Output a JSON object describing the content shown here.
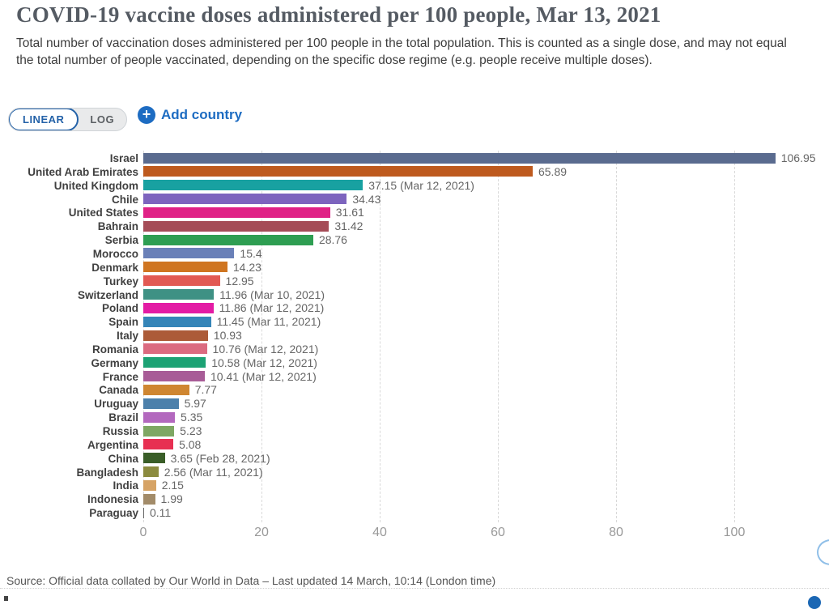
{
  "header": {
    "title": "COVID-19 vaccine doses administered per 100 people, Mar 13, 2021",
    "subtitle": "Total number of vaccination doses administered per 100 people in the total population. This is counted as a single dose, and may not equal the total number of people vaccinated, depending on the specific dose regime (e.g. people receive multiple doses)."
  },
  "controls": {
    "scale_toggle": {
      "options": [
        "LINEAR",
        "LOG"
      ],
      "selected": "LINEAR",
      "selected_color": "#2462a8"
    },
    "add_country": {
      "label": "Add country",
      "plus_icon": "+",
      "accent_color": "#1d6cc2"
    }
  },
  "chart_data": {
    "type": "bar",
    "orientation": "horizontal",
    "title": "COVID-19 vaccine doses administered per 100 people, Mar 13, 2021",
    "xlabel": "",
    "ylabel": "",
    "xlim": [
      0,
      113
    ],
    "x_ticks": [
      0,
      20,
      40,
      60,
      80,
      100
    ],
    "grid": "dashed-vertical",
    "bars": [
      {
        "label": "Israel",
        "value": 106.95,
        "display": "106.95",
        "color": "#5a6b8f"
      },
      {
        "label": "United Arab Emirates",
        "value": 65.89,
        "display": "65.89",
        "color": "#be5a1e"
      },
      {
        "label": "United Kingdom",
        "value": 37.15,
        "display": "37.15 (Mar 12, 2021)",
        "color": "#18a1a1"
      },
      {
        "label": "Chile",
        "value": 34.43,
        "display": "34.43",
        "color": "#7d64be"
      },
      {
        "label": "United States",
        "value": 31.61,
        "display": "31.61",
        "color": "#e02186"
      },
      {
        "label": "Bahrain",
        "value": 31.42,
        "display": "31.42",
        "color": "#a54c57"
      },
      {
        "label": "Serbia",
        "value": 28.76,
        "display": "28.76",
        "color": "#2e9e52"
      },
      {
        "label": "Morocco",
        "value": 15.4,
        "display": "15.4",
        "color": "#6a80b8"
      },
      {
        "label": "Denmark",
        "value": 14.23,
        "display": "14.23",
        "color": "#cf7521"
      },
      {
        "label": "Turkey",
        "value": 12.95,
        "display": "12.95",
        "color": "#e25953"
      },
      {
        "label": "Switzerland",
        "value": 11.96,
        "display": "11.96 (Mar 10, 2021)",
        "color": "#3e9184"
      },
      {
        "label": "Poland",
        "value": 11.86,
        "display": "11.86 (Mar 12, 2021)",
        "color": "#e31ba4"
      },
      {
        "label": "Spain",
        "value": 11.45,
        "display": "11.45 (Mar 11, 2021)",
        "color": "#3585b8"
      },
      {
        "label": "Italy",
        "value": 10.93,
        "display": "10.93",
        "color": "#ac5b38"
      },
      {
        "label": "Romania",
        "value": 10.76,
        "display": "10.76 (Mar 12, 2021)",
        "color": "#db6b80"
      },
      {
        "label": "Germany",
        "value": 10.58,
        "display": "10.58 (Mar 12, 2021)",
        "color": "#1ca274"
      },
      {
        "label": "France",
        "value": 10.41,
        "display": "10.41 (Mar 12, 2021)",
        "color": "#a85c97"
      },
      {
        "label": "Canada",
        "value": 7.77,
        "display": "7.77",
        "color": "#cf8631"
      },
      {
        "label": "Uruguay",
        "value": 5.97,
        "display": "5.97",
        "color": "#4c80ab"
      },
      {
        "label": "Brazil",
        "value": 5.35,
        "display": "5.35",
        "color": "#b368be"
      },
      {
        "label": "Russia",
        "value": 5.23,
        "display": "5.23",
        "color": "#7ea763"
      },
      {
        "label": "Argentina",
        "value": 5.08,
        "display": "5.08",
        "color": "#e73052"
      },
      {
        "label": "China",
        "value": 3.65,
        "display": "3.65 (Feb 28, 2021)",
        "color": "#3a5e28"
      },
      {
        "label": "Bangladesh",
        "value": 2.56,
        "display": "2.56 (Mar 11, 2021)",
        "color": "#8b8b3f"
      },
      {
        "label": "India",
        "value": 2.15,
        "display": "2.15",
        "color": "#d6a365"
      },
      {
        "label": "Indonesia",
        "value": 1.99,
        "display": "1.99",
        "color": "#a28b69"
      },
      {
        "label": "Paraguay",
        "value": 0.11,
        "display": "0.11",
        "color": "#666666"
      }
    ]
  },
  "footer": {
    "source": "Source: Official data collated by Our World in Data – Last updated 14 March, 10:14 (London time)"
  }
}
